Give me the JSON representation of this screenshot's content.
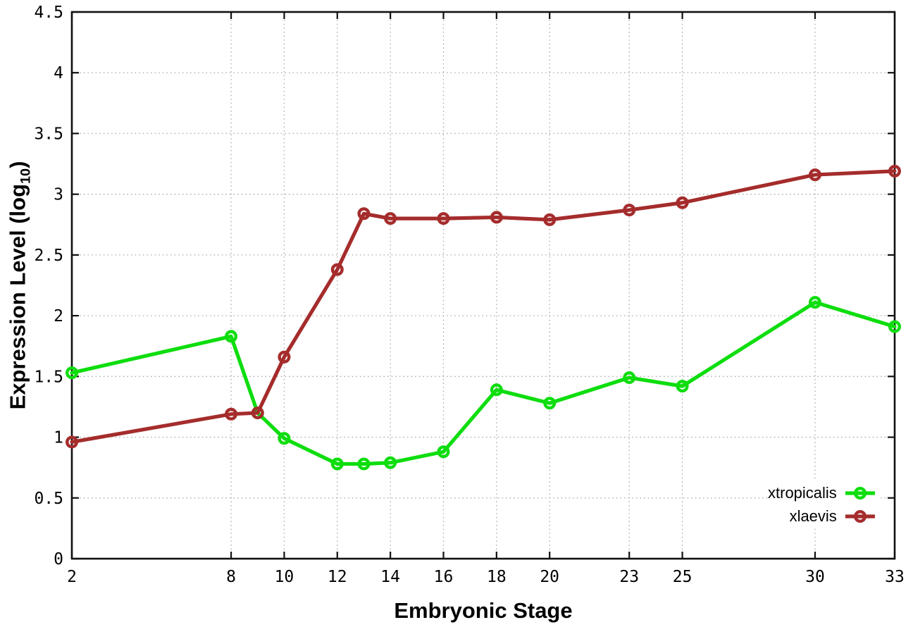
{
  "figure": {
    "xlabel": "Embryonic Stage",
    "ylabel": {
      "prefix": "Expression Level (log",
      "sub": "10",
      "suffix": ")"
    }
  },
  "chart_data": {
    "type": "line",
    "title": "",
    "xlabel": "Embryonic Stage",
    "ylabel": "Expression Level (log10)",
    "x": [
      2,
      8,
      9,
      10,
      12,
      13,
      14,
      16,
      18,
      20,
      23,
      25,
      30,
      33
    ],
    "series": [
      {
        "name": "xtropicalis",
        "color": "#0edd0e",
        "values": [
          1.53,
          1.83,
          1.2,
          0.99,
          0.78,
          0.78,
          0.79,
          0.88,
          1.39,
          1.28,
          1.49,
          1.42,
          2.11,
          1.91
        ]
      },
      {
        "name": "xlaevis",
        "color": "#a52c2c",
        "values": [
          0.96,
          1.19,
          1.2,
          1.66,
          2.38,
          2.84,
          2.8,
          2.8,
          2.81,
          2.79,
          2.87,
          2.93,
          3.16,
          3.19
        ]
      }
    ],
    "xlim": [
      2,
      33
    ],
    "ylim": [
      0,
      4.5
    ],
    "xticks": [
      2,
      8,
      10,
      12,
      14,
      16,
      18,
      20,
      23,
      25,
      30,
      33
    ],
    "yticks": [
      0,
      0.5,
      1,
      1.5,
      2,
      2.5,
      3,
      3.5,
      4,
      4.5
    ],
    "grid": true,
    "marker": "open-circle",
    "legend_position": "bottom-right"
  },
  "legend": {
    "items": [
      {
        "label": "xtropicalis",
        "color": "#0edd0e"
      },
      {
        "label": "xlaevis",
        "color": "#a52c2c"
      }
    ]
  },
  "style": {
    "axis_color": "#111111",
    "grid_color": "#ababab",
    "background": "#ffffff"
  }
}
